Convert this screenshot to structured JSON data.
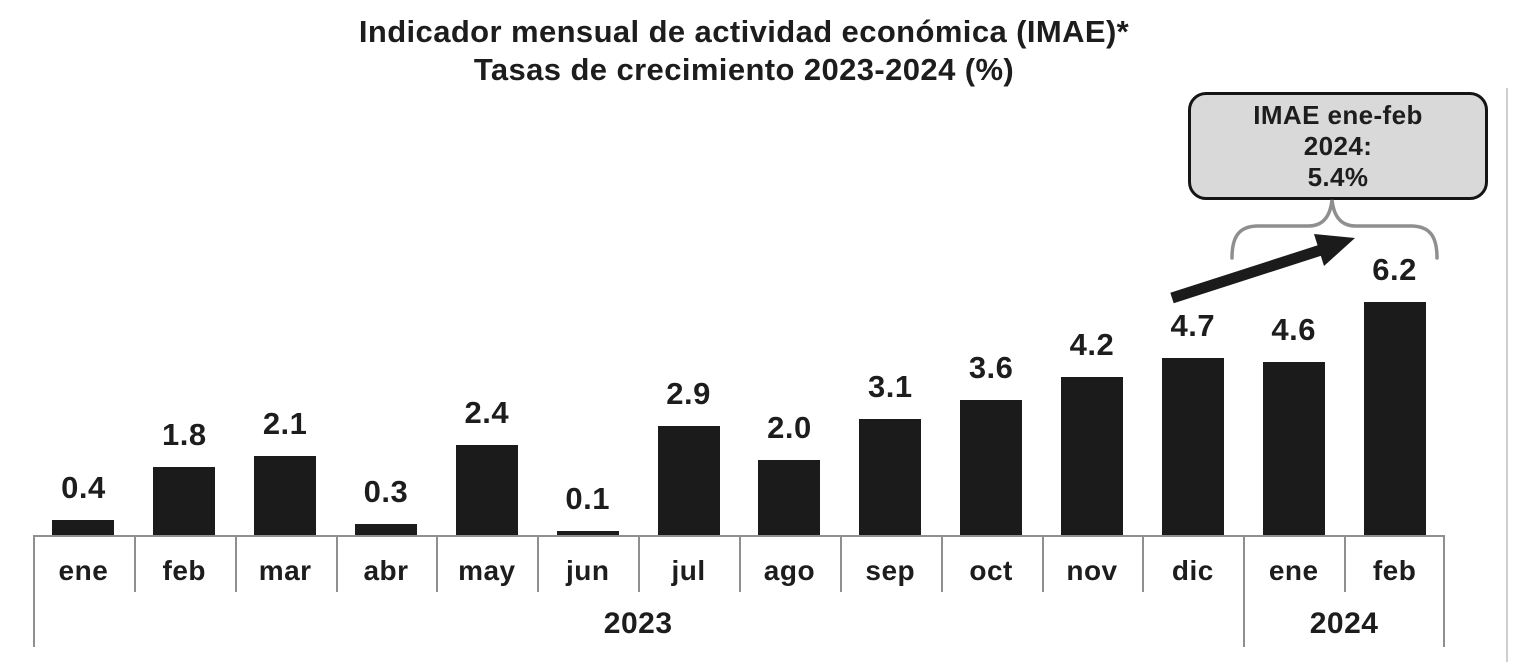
{
  "title": {
    "line1": "Indicador mensual de actividad económica (IMAE)*",
    "line2": "Tasas de crecimiento 2023-2024 (%)"
  },
  "callout": {
    "line1": "IMAE ene-feb",
    "line2": "2024:",
    "line3": "5.4%"
  },
  "chart_data": {
    "type": "bar",
    "title": "Indicador mensual de actividad económica (IMAE)*",
    "subtitle": "Tasas de crecimiento 2023-2024 (%)",
    "categories": [
      "ene",
      "feb",
      "mar",
      "abr",
      "may",
      "jun",
      "jul",
      "ago",
      "sep",
      "oct",
      "nov",
      "dic",
      "ene",
      "feb"
    ],
    "values": [
      0.4,
      1.8,
      2.1,
      0.3,
      2.4,
      0.1,
      2.9,
      2.0,
      3.1,
      3.6,
      4.2,
      4.7,
      4.6,
      6.2
    ],
    "value_label_decimals": 1,
    "groups": [
      {
        "label": "2023",
        "span": 12
      },
      {
        "label": "2024",
        "span": 2
      }
    ],
    "ylim": [
      0,
      6.5
    ],
    "grid": false,
    "legend": "none",
    "annotation": {
      "label": "IMAE ene-feb 2024: 5.4%",
      "targets": [
        "ene 2024",
        "feb 2024"
      ]
    }
  },
  "colors": {
    "bar": "#1b1b1b",
    "axis_line": "#8f8f8f",
    "text": "#1d1d1d",
    "callout_fill": "#d9d9d9",
    "callout_border": "#151515",
    "brace": "#8f8f8f",
    "arrow": "#1b1b1b",
    "page_edge_line": "#cfcfcf"
  }
}
